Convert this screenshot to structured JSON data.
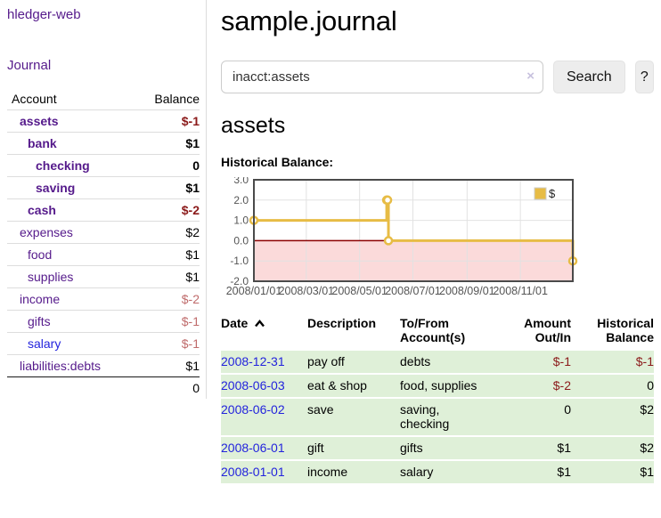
{
  "sidebar": {
    "brand": "hledger-web",
    "journal_link": "Journal",
    "accounts_table": {
      "headers": [
        "Account",
        "Balance"
      ],
      "rows": [
        {
          "label": "assets",
          "balance": "$-1",
          "indent": 0,
          "bold": true,
          "link_color": "purple",
          "balance_tone": "neg"
        },
        {
          "label": "bank",
          "balance": "$1",
          "indent": 1,
          "bold": true,
          "link_color": "purple",
          "balance_tone": ""
        },
        {
          "label": "checking",
          "balance": "0",
          "indent": 2,
          "bold": true,
          "link_color": "purple",
          "balance_tone": ""
        },
        {
          "label": "saving",
          "balance": "$1",
          "indent": 2,
          "bold": true,
          "link_color": "purple",
          "balance_tone": ""
        },
        {
          "label": "cash",
          "balance": "$-2",
          "indent": 1,
          "bold": true,
          "link_color": "purple",
          "balance_tone": "neg"
        },
        {
          "label": "expenses",
          "balance": "$2",
          "indent": 0,
          "bold": false,
          "link_color": "purple",
          "balance_tone": ""
        },
        {
          "label": "food",
          "balance": "$1",
          "indent": 1,
          "bold": false,
          "link_color": "purple",
          "balance_tone": ""
        },
        {
          "label": "supplies",
          "balance": "$1",
          "indent": 1,
          "bold": false,
          "link_color": "purple",
          "balance_tone": ""
        },
        {
          "label": "income",
          "balance": "$-2",
          "indent": 0,
          "bold": false,
          "link_color": "purple",
          "balance_tone": "negm"
        },
        {
          "label": "gifts",
          "balance": "$-1",
          "indent": 1,
          "bold": false,
          "link_color": "purple",
          "balance_tone": "negm"
        },
        {
          "label": "salary",
          "balance": "$-1",
          "indent": 1,
          "bold": false,
          "link_color": "blue",
          "balance_tone": "negm"
        },
        {
          "label": "liabilities:debts",
          "balance": "$1",
          "indent": 0,
          "bold": false,
          "link_color": "purple",
          "balance_tone": ""
        }
      ],
      "total": "0"
    }
  },
  "main": {
    "title": "sample.journal",
    "search": {
      "value": "inacct:assets",
      "clear_label": "×",
      "button_label": "Search",
      "help_label": "?"
    },
    "account_heading": "assets",
    "historical_balance_label": "Historical Balance:",
    "transactions": {
      "headers": [
        "Date",
        "Description",
        "To/From Account(s)",
        "Amount Out/In",
        "Historical Balance"
      ],
      "rows": [
        {
          "date": "2008-12-31",
          "description": "pay off",
          "accounts": "debts",
          "amount": "$-1",
          "amount_negative": true,
          "balance": "$-1",
          "balance_negative": true
        },
        {
          "date": "2008-06-03",
          "description": "eat & shop",
          "accounts": "food, supplies",
          "amount": "$-2",
          "amount_negative": true,
          "balance": "0",
          "balance_negative": false
        },
        {
          "date": "2008-06-02",
          "description": "save",
          "accounts": "saving, checking",
          "amount": "0",
          "amount_negative": false,
          "balance": "$2",
          "balance_negative": false
        },
        {
          "date": "2008-06-01",
          "description": "gift",
          "accounts": "gifts",
          "amount": "$1",
          "amount_negative": false,
          "balance": "$2",
          "balance_negative": false
        },
        {
          "date": "2008-01-01",
          "description": "income",
          "accounts": "salary",
          "amount": "$1",
          "amount_negative": false,
          "balance": "$1",
          "balance_negative": false
        }
      ]
    }
  },
  "chart_data": {
    "type": "line",
    "title": "Historical Balance:",
    "line_style": "step-after",
    "series": [
      {
        "name": "$",
        "color": "#e7bc45",
        "points": [
          {
            "date": "2008-01-01",
            "value": 1
          },
          {
            "date": "2008-06-01",
            "value": 2
          },
          {
            "date": "2008-06-02",
            "value": 2
          },
          {
            "date": "2008-06-03",
            "value": 0
          },
          {
            "date": "2008-12-31",
            "value": -1
          }
        ]
      }
    ],
    "ylim": [
      -2,
      3
    ],
    "y_ticks": [
      3,
      2,
      1,
      0,
      -1,
      -2
    ],
    "x_range": {
      "start": "2008-01-01",
      "end": "2008-12-31"
    },
    "x_ticks": [
      {
        "label": "2008/01/01",
        "date": "2008-01-01"
      },
      {
        "label": "2008/03/01",
        "date": "2008-03-01"
      },
      {
        "label": "2008/05/01",
        "date": "2008-05-01"
      },
      {
        "label": "2008/07/01",
        "date": "2008-07-01"
      },
      {
        "label": "2008/09/01",
        "date": "2008-09-01"
      },
      {
        "label": "2008/11/01",
        "date": "2008-11-01"
      }
    ],
    "legend": {
      "label": "$",
      "position": "top-right"
    },
    "grid": true,
    "colors": {
      "grid": "#e2e2e2",
      "zero_line": "#8b0000",
      "negative_region": "#fbdada",
      "border": "#4a4a4a",
      "tick_text": "#555555"
    }
  }
}
